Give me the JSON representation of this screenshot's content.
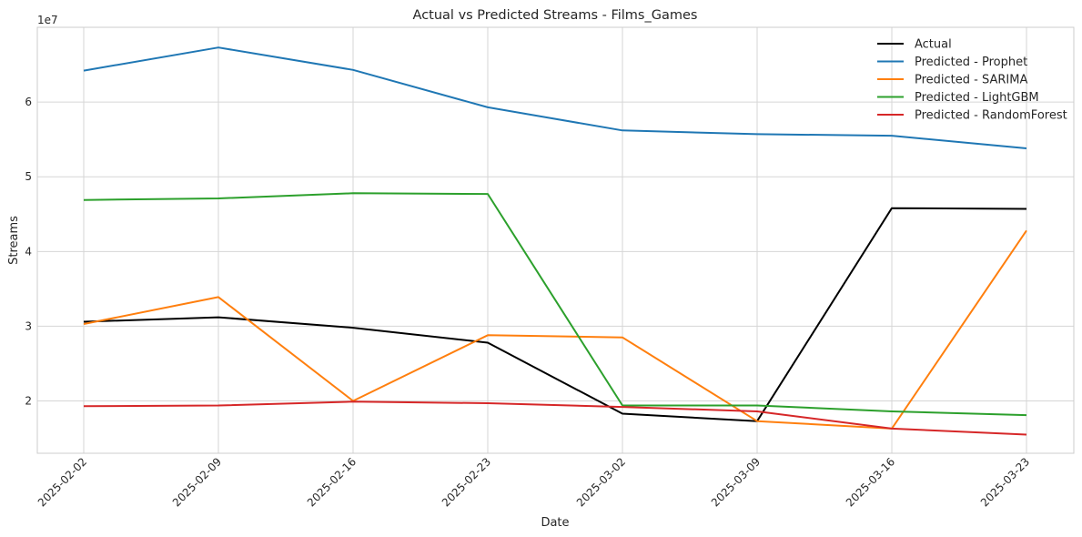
{
  "chart_data": {
    "type": "line",
    "title": "Actual vs Predicted Streams - Films_Games",
    "xlabel": "Date",
    "ylabel": "Streams",
    "y_offset_label": "1e7",
    "x": [
      "2025-02-02",
      "2025-02-09",
      "2025-02-16",
      "2025-02-23",
      "2025-03-02",
      "2025-03-09",
      "2025-03-16",
      "2025-03-23"
    ],
    "y_ticks": [
      20000000,
      30000000,
      40000000,
      50000000,
      60000000
    ],
    "y_tick_labels": [
      "2",
      "3",
      "4",
      "5",
      "6"
    ],
    "ylim": [
      13000000,
      70000000
    ],
    "grid": true,
    "legend_position": "top-right",
    "series": [
      {
        "name": "Actual",
        "color": "#000000",
        "values": [
          30600000,
          31200000,
          29800000,
          27800000,
          18300000,
          17300000,
          45800000,
          45700000
        ]
      },
      {
        "name": "Predicted - Prophet",
        "color": "#1f77b4",
        "values": [
          64200000,
          67300000,
          64300000,
          59300000,
          56200000,
          55700000,
          55500000,
          53800000
        ]
      },
      {
        "name": "Predicted - SARIMA",
        "color": "#ff7f0e",
        "values": [
          30300000,
          33900000,
          20000000,
          28800000,
          28500000,
          17300000,
          16300000,
          42800000
        ]
      },
      {
        "name": "Predicted - LightGBM",
        "color": "#2ca02c",
        "values": [
          46900000,
          47100000,
          47800000,
          47700000,
          19400000,
          19400000,
          18600000,
          18100000
        ]
      },
      {
        "name": "Predicted - RandomForest",
        "color": "#d62728",
        "values": [
          19300000,
          19400000,
          19900000,
          19700000,
          19200000,
          18600000,
          16300000,
          15500000
        ]
      }
    ]
  }
}
